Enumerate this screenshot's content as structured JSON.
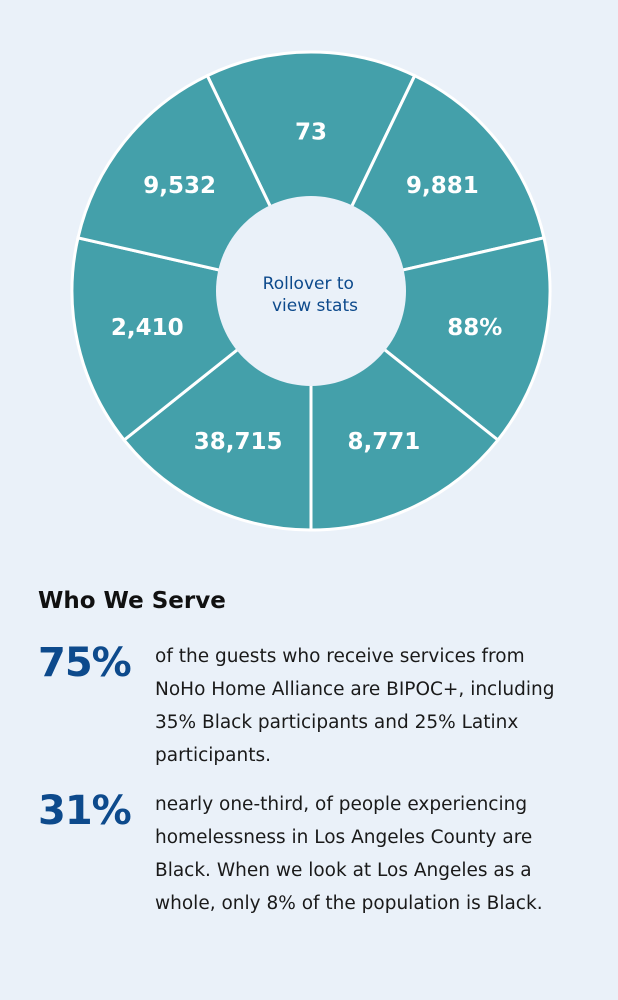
{
  "chart_data": {
    "type": "pie",
    "variant": "donut-equal-segments",
    "center_label": [
      "Rollover to",
      "view stats"
    ],
    "segments": [
      {
        "label": "73"
      },
      {
        "label": "9,881"
      },
      {
        "label": "88%"
      },
      {
        "label": "8,771"
      },
      {
        "label": "38,715"
      },
      {
        "label": "2,410"
      },
      {
        "label": "9,532"
      }
    ],
    "colors": {
      "segment": "#44a0aa",
      "divider": "#ffffff",
      "center_text": "#0d4a8c"
    }
  },
  "section": {
    "title": "Who We Serve",
    "stats": [
      {
        "number": "75%",
        "text": "of the guests who receive services from NoHo Home Alliance are BIPOC+, including 35% Black participants and 25% Latinx participants."
      },
      {
        "number": "31%",
        "text": "nearly one-third, of people experiencing homelessness in Los Angeles County are Black. When we look at Los Angeles as a whole, only 8% of the population is Black."
      }
    ]
  },
  "colors": {
    "background": "#eaf1f9",
    "accent": "#0d4a8c",
    "teal": "#44a0aa"
  }
}
